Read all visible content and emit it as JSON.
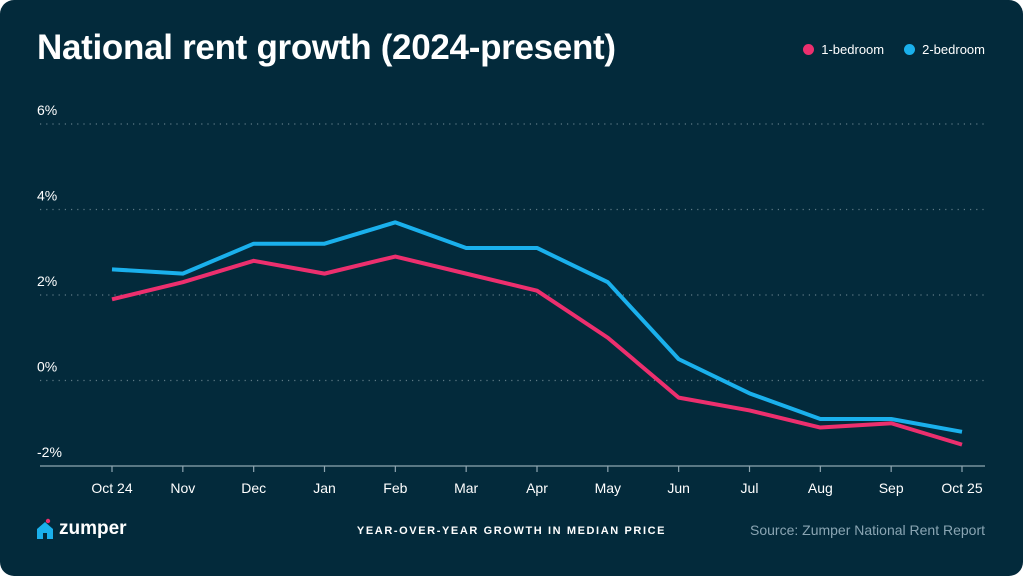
{
  "colors": {
    "background": "#032a3b",
    "one_bedroom": "#ec2f6e",
    "two_bedroom": "#1ab0ec",
    "grid": "#5e7a86"
  },
  "footer": {
    "logo": "zumper",
    "subtitle": "YEAR-OVER-YEAR GROWTH IN MEDIAN PRICE",
    "source": "Source: Zumper National Rent Report"
  },
  "chart_data": {
    "type": "line",
    "title": "National rent growth (2024-present)",
    "xlabel": "",
    "ylabel": "",
    "categories": [
      "Oct 24",
      "Nov",
      "Dec",
      "Jan",
      "Feb",
      "Mar",
      "Apr",
      "May",
      "Jun",
      "Jul",
      "Aug",
      "Sep",
      "Oct 25"
    ],
    "ylim": [
      -2,
      6
    ],
    "yticks": [
      6,
      4,
      2,
      0,
      -2
    ],
    "ytick_labels": [
      "6%",
      "4%",
      "2%",
      "0%",
      "-2%"
    ],
    "grid": true,
    "legend_position": "top-right",
    "series": [
      {
        "name": "1-bedroom",
        "values": [
          1.9,
          2.3,
          2.8,
          2.5,
          2.9,
          2.5,
          2.1,
          1.0,
          -0.4,
          -0.7,
          -1.1,
          -1.0,
          -1.5
        ]
      },
      {
        "name": "2-bedroom",
        "values": [
          2.6,
          2.5,
          3.2,
          3.2,
          3.7,
          3.1,
          3.1,
          2.3,
          0.5,
          -0.3,
          -0.9,
          -0.9,
          -1.2
        ]
      }
    ]
  }
}
